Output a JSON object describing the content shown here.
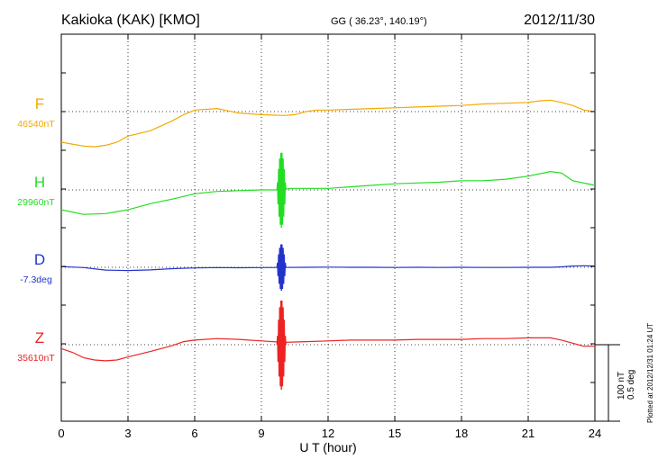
{
  "header": {
    "station": "Kakioka (KAK)  [KMO]",
    "coords": "GG ( 36.23°, 140.19°)",
    "date": "2012/11/30"
  },
  "plotted_note": "Plotted at 2012/12/31 01:24 UT",
  "scale": {
    "nt": "100 nT",
    "deg": "0.5 deg"
  },
  "chart_data": {
    "type": "line",
    "title": "Kakioka (KAK)  [KMO]",
    "xlabel": "U T (hour)",
    "ylabel": "",
    "xlim": [
      0,
      24
    ],
    "x_ticks": [
      0,
      3,
      6,
      9,
      12,
      15,
      18,
      21,
      24
    ],
    "grid": true,
    "series": [
      {
        "name": "F",
        "baseline_label": "46540nT",
        "unit": "nT",
        "baseline": 46540,
        "color": "#f2a900",
        "offset_ticks_note": "vertical scale: 100 nT per bar",
        "points": [
          [
            0,
            46500
          ],
          [
            1,
            46495
          ],
          [
            1.5,
            46494
          ],
          [
            2,
            46496
          ],
          [
            2.5,
            46500
          ],
          [
            3,
            46508
          ],
          [
            4,
            46515
          ],
          [
            5,
            46528
          ],
          [
            5.5,
            46536
          ],
          [
            6,
            46542
          ],
          [
            7,
            46544
          ],
          [
            8,
            46538
          ],
          [
            9,
            46536
          ],
          [
            10,
            46535
          ],
          [
            10.5,
            46536
          ],
          [
            11,
            46540
          ],
          [
            11.5,
            46542
          ],
          [
            12,
            46542
          ],
          [
            13,
            46543
          ],
          [
            14,
            46544
          ],
          [
            15,
            46545
          ],
          [
            16,
            46546
          ],
          [
            17,
            46547
          ],
          [
            18,
            46548
          ],
          [
            19,
            46550
          ],
          [
            20,
            46551
          ],
          [
            21,
            46552
          ],
          [
            21.5,
            46554
          ],
          [
            22,
            46555
          ],
          [
            22.5,
            46552
          ],
          [
            23,
            46548
          ],
          [
            23.5,
            46542
          ],
          [
            24,
            46540
          ]
        ]
      },
      {
        "name": "H",
        "baseline_label": "29960nT",
        "unit": "nT",
        "baseline": 29960,
        "color": "#22dd22",
        "points": [
          [
            0,
            29934
          ],
          [
            1,
            29928
          ],
          [
            2,
            29929
          ],
          [
            3,
            29934
          ],
          [
            4,
            29942
          ],
          [
            5,
            29948
          ],
          [
            6,
            29955
          ],
          [
            7,
            29958
          ],
          [
            8,
            29959
          ],
          [
            9,
            29960
          ],
          [
            9.9,
            29960
          ],
          [
            10.3,
            29962
          ],
          [
            11,
            29962
          ],
          [
            12,
            29962
          ],
          [
            13,
            29964
          ],
          [
            14,
            29966
          ],
          [
            15,
            29968
          ],
          [
            16,
            29969
          ],
          [
            17,
            29970
          ],
          [
            18,
            29972
          ],
          [
            19,
            29972
          ],
          [
            20,
            29974
          ],
          [
            21,
            29978
          ],
          [
            22,
            29984
          ],
          [
            22.5,
            29982
          ],
          [
            23,
            29972
          ],
          [
            24,
            29966
          ]
        ]
      },
      {
        "name": "D",
        "baseline_label": "-7.3deg",
        "unit": "deg",
        "baseline": -7.3,
        "color": "#2233cc",
        "points": [
          [
            0,
            -7.295
          ],
          [
            1,
            -7.302
          ],
          [
            2,
            -7.318
          ],
          [
            3,
            -7.321
          ],
          [
            4,
            -7.317
          ],
          [
            5,
            -7.309
          ],
          [
            6,
            -7.304
          ],
          [
            7,
            -7.302
          ],
          [
            8,
            -7.303
          ],
          [
            9,
            -7.302
          ],
          [
            10,
            -7.301
          ],
          [
            11,
            -7.3
          ],
          [
            12,
            -7.299
          ],
          [
            13,
            -7.3
          ],
          [
            14,
            -7.3
          ],
          [
            15,
            -7.301
          ],
          [
            16,
            -7.3
          ],
          [
            17,
            -7.301
          ],
          [
            18,
            -7.3
          ],
          [
            19,
            -7.301
          ],
          [
            20,
            -7.301
          ],
          [
            21,
            -7.3
          ],
          [
            22,
            -7.3
          ],
          [
            22.5,
            -7.297
          ],
          [
            23,
            -7.292
          ],
          [
            23.5,
            -7.29
          ],
          [
            24,
            -7.292
          ]
        ]
      },
      {
        "name": "Z",
        "baseline_label": "35610nT",
        "unit": "nT",
        "baseline": 35610,
        "color": "#ee2222",
        "points": [
          [
            0,
            35605
          ],
          [
            0.5,
            35600
          ],
          [
            1,
            35593
          ],
          [
            1.5,
            35590
          ],
          [
            2,
            35589
          ],
          [
            2.5,
            35590
          ],
          [
            3,
            35594
          ],
          [
            4,
            35601
          ],
          [
            5,
            35609
          ],
          [
            5.5,
            35614
          ],
          [
            6,
            35616
          ],
          [
            7,
            35618
          ],
          [
            8,
            35617
          ],
          [
            9,
            35615
          ],
          [
            10,
            35613
          ],
          [
            11,
            35614
          ],
          [
            12,
            35615
          ],
          [
            13,
            35616
          ],
          [
            14,
            35616
          ],
          [
            15,
            35616
          ],
          [
            16,
            35617
          ],
          [
            17,
            35617
          ],
          [
            18,
            35617
          ],
          [
            19,
            35618
          ],
          [
            20,
            35618
          ],
          [
            21,
            35619
          ],
          [
            22,
            35619
          ],
          [
            22.5,
            35616
          ],
          [
            23,
            35612
          ],
          [
            23.5,
            35608
          ],
          [
            24,
            35608
          ]
        ]
      }
    ],
    "disturbance": {
      "x_start": 9.7,
      "x_end": 10.1,
      "note": "oscillation burst near 10 UT in H, D and Z"
    }
  }
}
